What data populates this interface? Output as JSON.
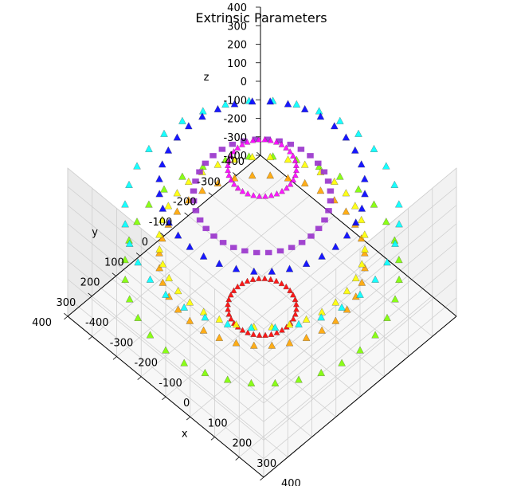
{
  "chart_data": {
    "type": "scatter",
    "title": "Extrinsic Parameters",
    "xlabel": "x",
    "ylabel": "y",
    "zlabel": "z",
    "xlim": [
      -400,
      400
    ],
    "ylim": [
      -400,
      400
    ],
    "zlim": [
      -400,
      400
    ],
    "grid": true,
    "x_ticks": [
      "-400",
      "-300",
      "-200",
      "-100",
      "0",
      "100",
      "200",
      "300",
      "400"
    ],
    "y_ticks": [
      "-400",
      "-300",
      "-200",
      "-100",
      "0",
      "100",
      "200",
      "300",
      "400"
    ],
    "z_ticks": [
      "-400",
      "-300",
      "-200",
      "-100",
      "0",
      "100",
      "200",
      "300",
      "400"
    ],
    "rings": [
      {
        "radius": 100,
        "z": 400,
        "count": 36,
        "color": "#ff00ff",
        "marker": "triangle"
      },
      {
        "radius": 300,
        "z": 300,
        "count": 36,
        "color": "#0000ff",
        "marker": "triangle"
      },
      {
        "radius": 200,
        "z": 250,
        "count": 36,
        "color": "#9932cc",
        "marker": "square"
      },
      {
        "radius": 400,
        "z": 150,
        "count": 36,
        "color": "#00ffff",
        "marker": "triangle"
      },
      {
        "radius": 300,
        "z": 0,
        "count": 36,
        "color": "#ffff00",
        "marker": "triangle"
      },
      {
        "radius": 300,
        "z": -100,
        "count": 36,
        "color": "#ffa500",
        "marker": "triangle"
      },
      {
        "radius": 400,
        "z": -150,
        "count": 36,
        "color": "#7fff00",
        "marker": "triangle"
      },
      {
        "radius": 100,
        "z": -350,
        "count": 36,
        "color": "#ff0000",
        "marker": "triangle"
      }
    ]
  }
}
